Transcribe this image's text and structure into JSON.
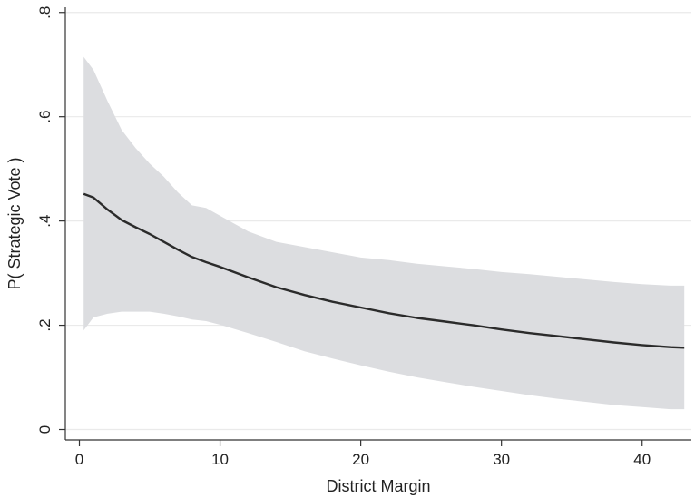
{
  "chart_data": {
    "type": "area",
    "title": "",
    "xlabel": "District Margin",
    "ylabel": "P( Strategic Vote )",
    "xlim": [
      -1,
      43.5
    ],
    "ylim": [
      -0.02,
      0.81
    ],
    "x_ticks": [
      0,
      10,
      20,
      30,
      40
    ],
    "x_tick_labels": [
      "0",
      "10",
      "20",
      "30",
      "40"
    ],
    "y_ticks": [
      0,
      0.2,
      0.4,
      0.6,
      0.8
    ],
    "y_tick_labels": [
      "0",
      ".2",
      ".4",
      ".6",
      ".8"
    ],
    "grid": "horizontal",
    "legend": "none",
    "colors": {
      "band": "#dcdde0",
      "line": "#2b2b2b",
      "grid": "#eaeaea",
      "axis": "#333333"
    },
    "series": [
      {
        "role": "prediction",
        "x": [
          0.3,
          1,
          2,
          3,
          4,
          5,
          6,
          7,
          8,
          9,
          10,
          12,
          14,
          16,
          18,
          20,
          22,
          24,
          26,
          28,
          30,
          32,
          34,
          36,
          38,
          40,
          42,
          43
        ],
        "y": [
          0.452,
          0.445,
          0.422,
          0.402,
          0.388,
          0.375,
          0.36,
          0.345,
          0.331,
          0.321,
          0.312,
          0.292,
          0.273,
          0.258,
          0.245,
          0.234,
          0.223,
          0.214,
          0.207,
          0.2,
          0.192,
          0.185,
          0.179,
          0.173,
          0.167,
          0.162,
          0.158,
          0.157
        ]
      },
      {
        "role": "upper-ci",
        "x": [
          0.3,
          1,
          2,
          3,
          4,
          5,
          6,
          7,
          8,
          9,
          10,
          12,
          14,
          16,
          18,
          20,
          22,
          24,
          26,
          28,
          30,
          32,
          34,
          36,
          38,
          40,
          42,
          43
        ],
        "y": [
          0.715,
          0.69,
          0.63,
          0.575,
          0.54,
          0.51,
          0.485,
          0.455,
          0.43,
          0.425,
          0.41,
          0.38,
          0.36,
          0.35,
          0.34,
          0.33,
          0.325,
          0.318,
          0.313,
          0.308,
          0.302,
          0.298,
          0.293,
          0.288,
          0.283,
          0.279,
          0.276,
          0.276
        ]
      },
      {
        "role": "lower-ci",
        "x": [
          0.3,
          1,
          2,
          3,
          4,
          5,
          6,
          7,
          8,
          9,
          10,
          12,
          14,
          16,
          18,
          20,
          22,
          24,
          26,
          28,
          30,
          32,
          34,
          36,
          38,
          40,
          42,
          43
        ],
        "y": [
          0.19,
          0.215,
          0.222,
          0.226,
          0.226,
          0.226,
          0.222,
          0.217,
          0.211,
          0.208,
          0.201,
          0.185,
          0.168,
          0.15,
          0.136,
          0.123,
          0.111,
          0.1,
          0.091,
          0.082,
          0.074,
          0.066,
          0.059,
          0.053,
          0.047,
          0.043,
          0.039,
          0.039
        ]
      }
    ]
  }
}
